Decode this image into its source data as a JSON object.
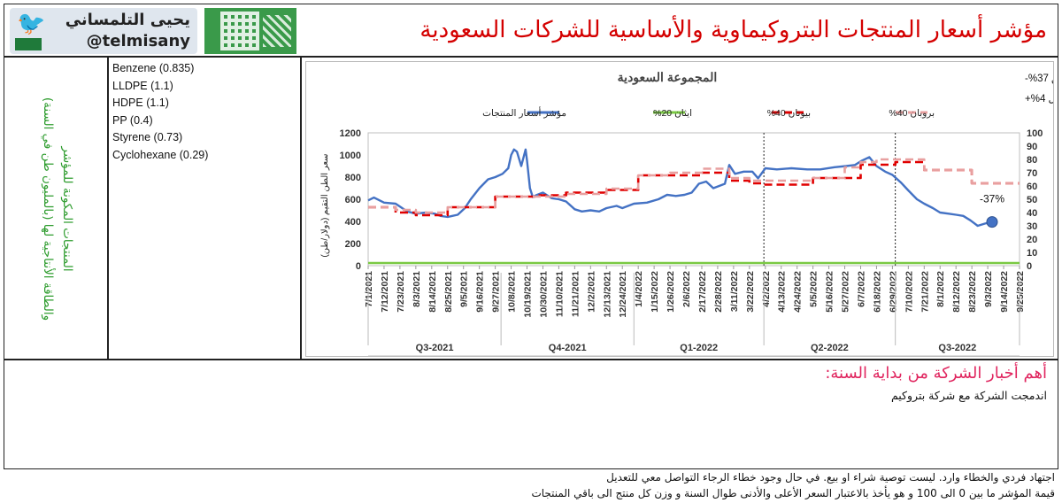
{
  "header": {
    "title": "مؤشر أسعار المنتجات البتروكيماوية والأساسية للشركات السعودية",
    "brand_name": "يحيى التلمساني",
    "brand_handle": "@telmisany",
    "brand_icon": "twitter-bird-icon",
    "qr_icon": "qr-code-icon"
  },
  "left_caption": {
    "line1": "المنتجات المكونة للمؤشر",
    "line2": "والطاقة الأنتاجية لها (بالمليون طن في السنة)"
  },
  "products": [
    "Benzene (0.835)",
    "LLDPE (1.1)",
    "HDPE (1.1)",
    "PP (0.4)",
    "Styrene (0.73)",
    "Cyclohexane (0.29)"
  ],
  "chart_data": {
    "type": "line",
    "title": "المجموعة السعودية",
    "annotations": {
      "qoq": "التغيير عن الربع السابق 37%-",
      "yoy": "التغيير عن الربع المماثل 4%+",
      "end_label": "-37%"
    },
    "ylabel_left": "سعر الطن التقيم (دولار/طن)",
    "ylim_left": [
      0,
      1200
    ],
    "yticks_left": [
      0,
      200,
      400,
      600,
      800,
      1000,
      1200
    ],
    "ylim_right": [
      0,
      100
    ],
    "yticks_right": [
      0,
      10,
      20,
      30,
      40,
      50,
      60,
      70,
      80,
      90,
      100
    ],
    "x_tick_labels": [
      "7/1/2021",
      "7/12/2021",
      "7/23/2021",
      "8/3/2021",
      "8/14/2021",
      "8/25/2021",
      "9/5/2021",
      "9/16/2021",
      "9/27/2021",
      "10/8/2021",
      "10/19/2021",
      "10/30/2021",
      "11/10/2021",
      "11/21/2021",
      "12/2/2021",
      "12/13/2021",
      "12/24/2021",
      "1/4/2022",
      "1/15/2022",
      "1/26/2022",
      "2/6/2022",
      "2/17/2022",
      "2/28/2022",
      "3/11/2022",
      "3/22/2022",
      "4/2/2022",
      "4/13/2022",
      "4/24/2022",
      "5/5/2022",
      "5/16/2022",
      "5/27/2022",
      "6/7/2022",
      "6/18/2022",
      "6/29/2022",
      "7/10/2022",
      "7/21/2022",
      "8/1/2022",
      "8/12/2022",
      "8/23/2022",
      "9/3/2022",
      "9/14/2022",
      "9/25/2022"
    ],
    "quarters": [
      "Q3-2021",
      "Q4-2021",
      "Q1-2022",
      "Q2-2022",
      "Q3-2022"
    ],
    "legend": [
      {
        "name": "مؤشر أسعار المنتجات",
        "color": "#4472c4",
        "style": "solid"
      },
      {
        "name": "ايثان 20%",
        "color": "#7ac943",
        "style": "solid"
      },
      {
        "name": "بيوتان 40%",
        "color": "#e00000",
        "style": "dash"
      },
      {
        "name": "بروبان 40%",
        "color": "#e8a0a0",
        "style": "dash"
      }
    ],
    "series": [
      {
        "name": "مؤشر أسعار المنتجات",
        "axis": "left",
        "color": "#4472c4",
        "x": [
          "7/1/2021",
          "7/5/2021",
          "7/12/2021",
          "7/20/2021",
          "7/28/2021",
          "8/3/2021",
          "8/10/2021",
          "8/16/2021",
          "8/20/2021",
          "8/25/2021",
          "9/1/2021",
          "9/6/2021",
          "9/10/2021",
          "9/16/2021",
          "9/22/2021",
          "9/27/2021",
          "10/2/2021",
          "10/6/2021",
          "10/8/2021",
          "10/10/2021",
          "10/12/2021",
          "10/15/2021",
          "10/18/2021",
          "10/19/2021",
          "10/21/2021",
          "10/23/2021",
          "10/26/2021",
          "10/30/2021",
          "11/5/2021",
          "11/10/2021",
          "11/15/2021",
          "11/21/2021",
          "11/26/2021",
          "12/2/2021",
          "12/8/2021",
          "12/13/2021",
          "12/20/2021",
          "12/24/2021",
          "1/1/2022",
          "1/10/2022",
          "1/18/2022",
          "1/24/2022",
          "1/30/2022",
          "2/5/2022",
          "2/10/2022",
          "2/15/2022",
          "2/20/2022",
          "2/25/2022",
          "3/1/2022",
          "3/5/2022",
          "3/8/2022",
          "3/12/2022",
          "3/18/2022",
          "3/24/2022",
          "3/28/2022",
          "4/2/2022",
          "4/10/2022",
          "4/20/2022",
          "5/1/2022",
          "5/10/2022",
          "5/20/2022",
          "5/28/2022",
          "6/3/2022",
          "6/8/2022",
          "6/13/2022",
          "6/18/2022",
          "6/24/2022",
          "6/29/2022",
          "7/5/2022",
          "7/10/2022",
          "7/16/2022",
          "7/21/2022",
          "7/27/2022",
          "8/1/2022",
          "8/7/2022",
          "8/12/2022",
          "8/17/2022",
          "8/22/2022",
          "8/27/2022",
          "9/1/2022",
          "9/6/2022"
        ],
        "y": [
          590,
          615,
          570,
          560,
          490,
          470,
          480,
          470,
          450,
          440,
          460,
          520,
          600,
          700,
          780,
          800,
          830,
          880,
          1000,
          1050,
          1030,
          900,
          1050,
          950,
          700,
          620,
          640,
          660,
          610,
          600,
          580,
          510,
          490,
          500,
          490,
          520,
          540,
          520,
          560,
          570,
          600,
          640,
          630,
          640,
          660,
          740,
          760,
          700,
          720,
          740,
          910,
          830,
          850,
          850,
          790,
          880,
          870,
          880,
          870,
          870,
          890,
          900,
          910,
          950,
          980,
          900,
          850,
          820,
          750,
          680,
          600,
          560,
          520,
          480,
          470,
          460,
          450,
          410,
          360,
          380,
          395
        ]
      },
      {
        "name": "ايثان 20%",
        "axis": "right",
        "color": "#7ac943",
        "x": [
          "7/1/2021",
          "9/25/2022"
        ],
        "y": [
          2,
          2
        ]
      },
      {
        "name": "بيوتان 40%",
        "axis": "right",
        "color": "#e00000",
        "x": [
          "7/1/2021",
          "7/20/2021",
          "8/3/2021",
          "8/25/2021",
          "9/27/2021",
          "10/25/2021",
          "11/15/2021",
          "12/13/2021",
          "1/4/2022",
          "1/26/2022",
          "2/17/2022",
          "3/8/2022",
          "3/22/2022",
          "4/2/2022",
          "4/24/2022",
          "5/5/2022",
          "5/27/2022",
          "6/7/2022",
          "6/18/2022",
          "7/1/2022",
          "7/21/2022",
          "8/23/2022",
          "9/25/2022"
        ],
        "y": [
          44,
          40,
          38,
          44,
          52,
          53,
          55,
          57,
          68,
          68,
          70,
          64,
          62,
          61,
          61,
          66,
          66,
          76,
          76,
          78,
          72,
          62,
          62
        ]
      },
      {
        "name": "بروبان 40%",
        "axis": "right",
        "color": "#e8a0a0",
        "x": [
          "7/1/2021",
          "7/20/2021",
          "8/3/2021",
          "8/25/2021",
          "9/27/2021",
          "10/25/2021",
          "11/15/2021",
          "12/13/2021",
          "1/4/2022",
          "1/26/2022",
          "2/17/2022",
          "3/8/2022",
          "3/22/2022",
          "4/2/2022",
          "4/24/2022",
          "5/5/2022",
          "5/27/2022",
          "6/7/2022",
          "6/18/2022",
          "7/1/2022",
          "7/21/2022",
          "8/23/2022",
          "9/25/2022"
        ],
        "y": [
          44,
          42,
          40,
          44,
          52,
          52,
          54,
          58,
          68,
          70,
          73,
          66,
          64,
          64,
          64,
          66,
          74,
          78,
          80,
          80,
          72,
          62,
          62
        ]
      }
    ],
    "end_marker": {
      "x": "9/6/2022",
      "y": 395
    },
    "vertical_markers": [
      "4/1/2022",
      "7/1/2022"
    ],
    "grid": false,
    "legend_position": "top"
  },
  "news": {
    "title": "أهم أخبار الشركة من بداية السنة:",
    "items": [
      "اندمجت الشركة مع شركة بتروكيم"
    ]
  },
  "footer": {
    "line1": "اجتهاد فردي والخطاء وارد. ليست توصية شراء او بيع. في حال وجود خطاء الرجاء التواصل معي للتعديل",
    "line2": "قيمة المؤشر ما بين 0 الى 100 و هو يأخذ بالاعتبار السعر الأعلى والأدنى طوال السنة و وزن كل منتج الى باقي المنتجات"
  }
}
